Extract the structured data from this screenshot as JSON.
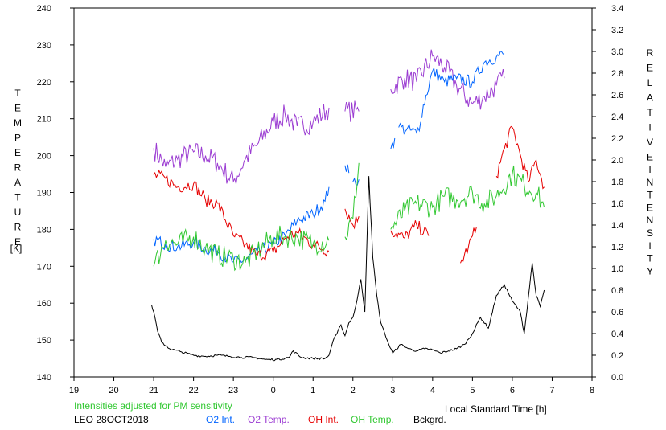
{
  "chart_data": {
    "type": "line",
    "left_axis": {
      "label_letters": [
        "T",
        "E",
        "M",
        "P",
        "E",
        "R",
        "A",
        "T",
        "U",
        "R",
        "E"
      ],
      "unit": "[K]",
      "ylim": [
        140,
        240
      ],
      "ticks": [
        "140",
        "150",
        "160",
        "170",
        "180",
        "190",
        "200",
        "210",
        "220",
        "230",
        "240"
      ]
    },
    "right_axis": {
      "label_letters_1": [
        "R",
        "E",
        "L",
        "A",
        "T",
        "I",
        "V",
        "E"
      ],
      "label_letters_2": [
        "I",
        "N",
        "T",
        "E",
        "N",
        "S",
        "I",
        "T",
        "Y"
      ],
      "ylim": [
        0.0,
        3.4
      ],
      "ticks": [
        "0.0",
        "0.2",
        "0.4",
        "0.6",
        "0.8",
        "1.0",
        "1.2",
        "1.4",
        "1.6",
        "1.8",
        "2.0",
        "2.2",
        "2.4",
        "2.6",
        "2.8",
        "3.0",
        "3.2",
        "3.4"
      ]
    },
    "x_axis": {
      "label": "Local Standard Time [h]",
      "xlim": [
        19,
        32
      ],
      "ticks": [
        "19",
        "20",
        "21",
        "22",
        "23",
        "0",
        "1",
        "2",
        "3",
        "4",
        "5",
        "6",
        "7",
        "8"
      ]
    },
    "note": "Intensities adjusted for PM sensitivity",
    "station": "LEO 28OCT2018",
    "legend": [
      {
        "label": "O2 Int.",
        "color": "#0064ff"
      },
      {
        "label": "O2 Temp.",
        "color": "#9b3cd2"
      },
      {
        "label": "OH Int.",
        "color": "#e60000"
      },
      {
        "label": "OH Temp.",
        "color": "#32c832"
      },
      {
        "label": "Bckgrd.",
        "color": "#000000"
      }
    ],
    "series": [
      {
        "name": "O2 Temp.",
        "color": "#9b3cd2",
        "axis": "left",
        "segments": [
          [
            [
              21.0,
              202
            ],
            [
              21.3,
              197
            ],
            [
              21.6,
              199
            ],
            [
              22.0,
              201
            ],
            [
              22.3,
              200
            ],
            [
              22.6,
              198
            ],
            [
              23.0,
              193
            ],
            [
              23.3,
              199
            ],
            [
              23.6,
              203
            ],
            [
              24.0,
              209
            ],
            [
              24.3,
              211
            ],
            [
              24.6,
              208
            ],
            [
              25.0,
              209
            ],
            [
              25.4,
              213
            ]
          ],
          [
            [
              25.8,
              212
            ],
            [
              26.15,
              212
            ]
          ],
          [
            [
              26.95,
              218
            ],
            [
              27.3,
              221
            ],
            [
              27.6,
              220
            ],
            [
              28.0,
              227
            ],
            [
              28.3,
              224
            ],
            [
              28.6,
              219
            ],
            [
              29.0,
              214
            ],
            [
              29.3,
              216
            ],
            [
              29.6,
              219
            ],
            [
              29.8,
              221
            ]
          ]
        ]
      },
      {
        "name": "O2 Int.",
        "color": "#0064ff",
        "axis": "right",
        "segments": [
          [
            [
              21.0,
              1.27
            ],
            [
              21.3,
              1.22
            ],
            [
              21.6,
              1.2
            ],
            [
              22.0,
              1.24
            ],
            [
              22.3,
              1.18
            ],
            [
              22.6,
              1.16
            ],
            [
              23.0,
              1.06
            ],
            [
              23.3,
              1.08
            ],
            [
              23.6,
              1.15
            ],
            [
              24.0,
              1.22
            ],
            [
              24.3,
              1.3
            ],
            [
              24.6,
              1.44
            ],
            [
              25.0,
              1.5
            ],
            [
              25.3,
              1.62
            ],
            [
              25.4,
              1.75
            ]
          ],
          [
            [
              25.8,
              1.95
            ],
            [
              25.9,
              1.88
            ]
          ],
          [
            [
              26.0,
              1.8
            ],
            [
              26.15,
              1.82
            ]
          ],
          [
            [
              26.95,
              2.1
            ],
            [
              27.05,
              2.2
            ]
          ],
          [
            [
              27.15,
              2.3
            ],
            [
              27.35,
              2.28
            ],
            [
              27.6,
              2.25
            ],
            [
              27.7,
              2.35
            ]
          ],
          [
            [
              27.7,
              2.4
            ],
            [
              28.0,
              2.82
            ],
            [
              28.3,
              2.72
            ],
            [
              28.6,
              2.75
            ],
            [
              29.0,
              2.72
            ],
            [
              29.3,
              2.9
            ],
            [
              29.6,
              2.95
            ],
            [
              29.8,
              2.98
            ]
          ]
        ]
      },
      {
        "name": "OH Int.",
        "color": "#e60000",
        "axis": "right",
        "segments": [
          [
            [
              21.0,
              1.86
            ],
            [
              21.3,
              1.83
            ],
            [
              21.6,
              1.75
            ],
            [
              22.0,
              1.78
            ],
            [
              22.3,
              1.63
            ],
            [
              22.6,
              1.6
            ],
            [
              23.0,
              1.3
            ],
            [
              23.3,
              1.22
            ],
            [
              23.6,
              1.12
            ],
            [
              24.0,
              1.15
            ],
            [
              24.3,
              1.28
            ],
            [
              24.6,
              1.33
            ],
            [
              25.0,
              1.22
            ],
            [
              25.4,
              1.16
            ]
          ],
          [
            [
              25.8,
              1.55
            ],
            [
              26.0,
              1.4
            ],
            [
              26.15,
              1.48
            ]
          ],
          [
            [
              26.95,
              1.35
            ],
            [
              27.3,
              1.28
            ],
            [
              27.6,
              1.4
            ],
            [
              27.9,
              1.3
            ]
          ],
          [
            [
              28.7,
              1.05
            ],
            [
              28.9,
              1.2
            ],
            [
              29.1,
              1.38
            ]
          ],
          [
            [
              29.6,
              1.85
            ],
            [
              29.8,
              2.1
            ],
            [
              30.0,
              2.3
            ],
            [
              30.2,
              2.05
            ],
            [
              30.4,
              1.8
            ],
            [
              30.6,
              2.0
            ],
            [
              30.8,
              1.75
            ]
          ]
        ]
      },
      {
        "name": "OH Temp.",
        "color": "#32c832",
        "axis": "left",
        "segments": [
          [
            [
              21.0,
              170
            ],
            [
              21.3,
              177
            ],
            [
              21.6,
              176
            ],
            [
              22.0,
              178
            ],
            [
              22.3,
              175
            ],
            [
              22.6,
              173
            ],
            [
              23.0,
              172
            ],
            [
              23.3,
              171
            ],
            [
              23.6,
              174
            ],
            [
              24.0,
              178
            ],
            [
              24.3,
              178
            ],
            [
              24.6,
              178
            ],
            [
              25.0,
              176
            ],
            [
              25.4,
              177
            ]
          ],
          [
            [
              25.8,
              178
            ],
            [
              26.0,
              183
            ],
            [
              26.15,
              198
            ]
          ],
          [
            [
              26.95,
              180
            ],
            [
              27.3,
              185
            ],
            [
              27.6,
              187
            ],
            [
              28.0,
              186
            ],
            [
              28.3,
              189
            ],
            [
              28.6,
              188
            ],
            [
              29.0,
              190
            ],
            [
              29.3,
              187
            ],
            [
              29.6,
              189
            ],
            [
              30.0,
              195
            ],
            [
              30.3,
              192
            ],
            [
              30.6,
              190
            ],
            [
              30.8,
              186
            ]
          ]
        ]
      },
      {
        "name": "Bckgrd.",
        "color": "#000000",
        "axis": "right",
        "segments": [
          [
            [
              20.95,
              0.66
            ],
            [
              21.0,
              0.6
            ],
            [
              21.1,
              0.42
            ],
            [
              21.2,
              0.32
            ],
            [
              21.4,
              0.26
            ],
            [
              21.7,
              0.23
            ],
            [
              22.0,
              0.2
            ],
            [
              22.3,
              0.19
            ],
            [
              22.6,
              0.2
            ],
            [
              22.9,
              0.19
            ],
            [
              23.2,
              0.18
            ],
            [
              23.5,
              0.18
            ],
            [
              23.8,
              0.16
            ],
            [
              24.1,
              0.16
            ],
            [
              24.4,
              0.18
            ],
            [
              24.5,
              0.24
            ],
            [
              24.7,
              0.18
            ],
            [
              25.0,
              0.17
            ],
            [
              25.3,
              0.17
            ],
            [
              25.4,
              0.2
            ],
            [
              25.5,
              0.33
            ],
            [
              25.6,
              0.4
            ],
            [
              25.7,
              0.48
            ],
            [
              25.8,
              0.38
            ],
            [
              25.9,
              0.5
            ],
            [
              26.0,
              0.55
            ],
            [
              26.1,
              0.7
            ],
            [
              26.2,
              0.9
            ],
            [
              26.3,
              0.6
            ],
            [
              26.4,
              1.85
            ],
            [
              26.5,
              1.1
            ],
            [
              26.6,
              0.75
            ],
            [
              26.7,
              0.5
            ],
            [
              26.8,
              0.4
            ],
            [
              26.9,
              0.3
            ],
            [
              27.0,
              0.22
            ],
            [
              27.2,
              0.3
            ],
            [
              27.4,
              0.26
            ],
            [
              27.6,
              0.24
            ],
            [
              27.8,
              0.26
            ],
            [
              28.0,
              0.25
            ],
            [
              28.2,
              0.22
            ],
            [
              28.4,
              0.24
            ],
            [
              28.6,
              0.26
            ],
            [
              28.8,
              0.3
            ],
            [
              29.0,
              0.4
            ],
            [
              29.2,
              0.55
            ],
            [
              29.4,
              0.45
            ],
            [
              29.6,
              0.75
            ],
            [
              29.8,
              0.85
            ],
            [
              30.0,
              0.7
            ],
            [
              30.2,
              0.6
            ],
            [
              30.3,
              0.4
            ],
            [
              30.5,
              1.05
            ],
            [
              30.6,
              0.75
            ],
            [
              30.7,
              0.65
            ],
            [
              30.8,
              0.8
            ]
          ]
        ]
      }
    ]
  }
}
